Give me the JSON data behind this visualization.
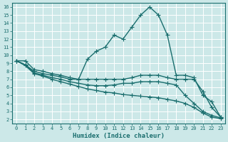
{
  "xlabel": "Humidex (Indice chaleur)",
  "xlim": [
    -0.5,
    23.5
  ],
  "ylim": [
    1.5,
    16.5
  ],
  "xticks": [
    0,
    1,
    2,
    3,
    4,
    5,
    6,
    7,
    8,
    9,
    10,
    11,
    12,
    13,
    14,
    15,
    16,
    17,
    18,
    19,
    20,
    21,
    22,
    23
  ],
  "yticks": [
    2,
    3,
    4,
    5,
    6,
    7,
    8,
    9,
    10,
    11,
    12,
    13,
    14,
    15,
    16
  ],
  "bg_color": "#cce8e8",
  "grid_color": "#ffffff",
  "line_color": "#1a6e6e",
  "curves": [
    {
      "x": [
        0,
        1,
        2,
        3,
        4,
        5,
        6,
        7,
        8,
        9,
        10,
        11,
        12,
        13,
        14,
        15,
        16,
        17,
        18,
        19,
        20,
        21,
        22,
        23
      ],
      "y": [
        9.3,
        9.3,
        8.2,
        8.0,
        7.7,
        7.5,
        7.2,
        7.0,
        9.5,
        10.5,
        11.0,
        12.5,
        12.0,
        13.5,
        15.0,
        16.0,
        15.0,
        12.5,
        7.5,
        7.5,
        7.2,
        5.0,
        4.2,
        2.3
      ],
      "marker": "+",
      "markersize": 4,
      "linewidth": 1.0
    },
    {
      "x": [
        0,
        1,
        2,
        3,
        4,
        5,
        6,
        7,
        8,
        9,
        10,
        11,
        12,
        13,
        14,
        15,
        16,
        17,
        18,
        19,
        20,
        21,
        22,
        23
      ],
      "y": [
        9.3,
        8.8,
        8.0,
        7.7,
        7.5,
        7.3,
        7.0,
        7.0,
        7.0,
        7.0,
        7.0,
        7.0,
        7.0,
        7.2,
        7.5,
        7.5,
        7.5,
        7.2,
        7.0,
        7.0,
        7.0,
        5.5,
        3.5,
        2.3
      ],
      "marker": "+",
      "markersize": 4,
      "linewidth": 1.0
    },
    {
      "x": [
        0,
        1,
        2,
        3,
        4,
        5,
        6,
        7,
        8,
        9,
        10,
        11,
        12,
        13,
        14,
        15,
        16,
        17,
        18,
        19,
        20,
        21,
        22,
        23
      ],
      "y": [
        9.3,
        8.8,
        7.8,
        7.5,
        7.2,
        7.0,
        6.7,
        6.5,
        6.3,
        6.2,
        6.2,
        6.3,
        6.5,
        6.5,
        6.7,
        6.7,
        6.7,
        6.5,
        6.3,
        5.0,
        4.0,
        3.0,
        2.5,
        2.2
      ],
      "marker": "+",
      "markersize": 4,
      "linewidth": 1.0
    },
    {
      "x": [
        0,
        1,
        2,
        3,
        4,
        5,
        6,
        7,
        8,
        9,
        10,
        11,
        12,
        13,
        14,
        15,
        16,
        17,
        18,
        19,
        20,
        21,
        22,
        23
      ],
      "y": [
        9.3,
        8.7,
        7.7,
        7.4,
        7.0,
        6.7,
        6.4,
        6.1,
        5.8,
        5.6,
        5.4,
        5.3,
        5.1,
        5.0,
        4.9,
        4.8,
        4.7,
        4.5,
        4.3,
        4.0,
        3.5,
        2.8,
        2.3,
        2.1
      ],
      "marker": "+",
      "markersize": 4,
      "linewidth": 1.0
    }
  ]
}
